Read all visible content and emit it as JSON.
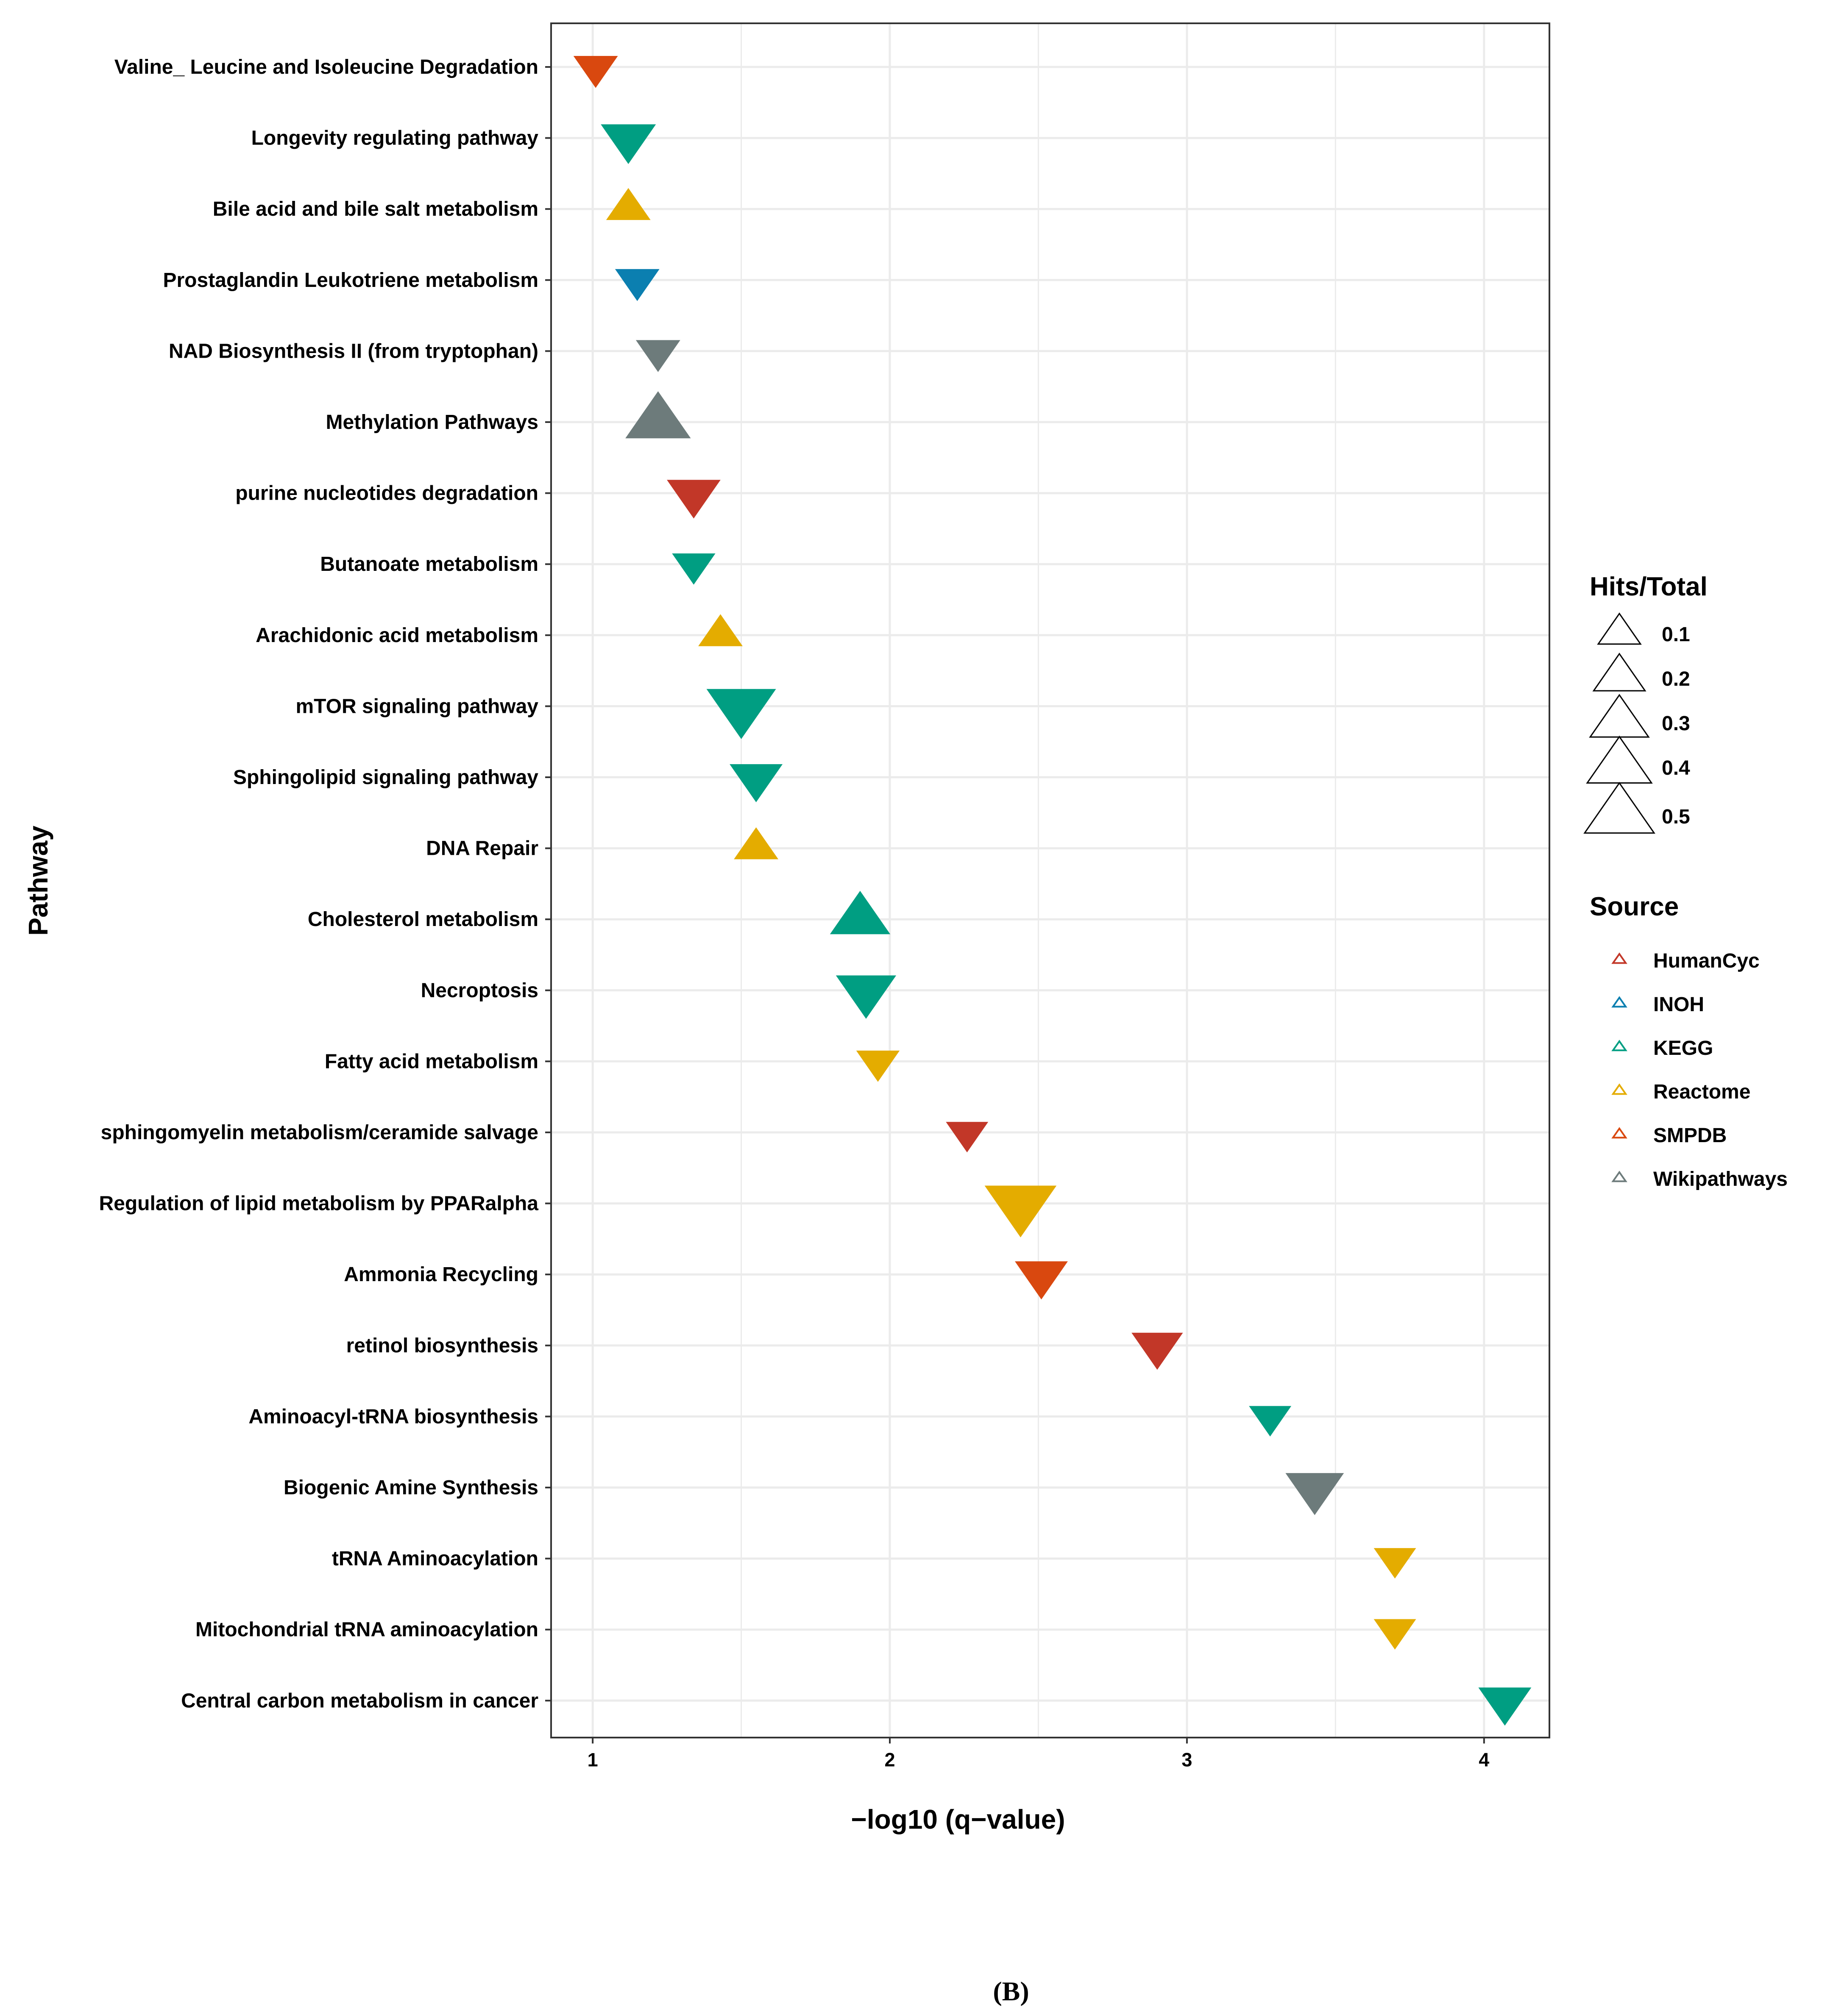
{
  "chart_data": {
    "type": "scatter",
    "xlabel": "−log10 (q−value)",
    "ylabel": "Pathway",
    "xlim": [
      0.86,
      4.22
    ],
    "xticks": [
      1,
      2,
      3,
      4
    ],
    "caption": "(B)",
    "categories": [
      "Valine_ Leucine and Isoleucine Degradation",
      "Longevity regulating pathway",
      "Bile acid and bile salt metabolism",
      "Prostaglandin Leukotriene metabolism",
      "NAD Biosynthesis II (from tryptophan)",
      "Methylation Pathways",
      "purine nucleotides degradation",
      "Butanoate metabolism",
      "Arachidonic acid metabolism",
      "mTOR signaling pathway",
      "Sphingolipid signaling pathway",
      "DNA Repair",
      "Cholesterol metabolism",
      "Necroptosis",
      "Fatty acid metabolism",
      "sphingomyelin metabolism/ceramide salvage",
      "Regulation of lipid metabolism by PPARalpha",
      "Ammonia Recycling",
      "retinol biosynthesis",
      "Aminoacyl-tRNA biosynthesis",
      "Biogenic Amine Synthesis",
      "tRNA Aminoacylation",
      "Mitochondrial tRNA aminoacylation",
      "Central carbon metabolism in cancer"
    ],
    "points": [
      {
        "pathway": "Valine_ Leucine and Isoleucine Degradation",
        "x": 1.01,
        "source": "SMPDB",
        "hits_total": 0.12,
        "direction": "down"
      },
      {
        "pathway": "Longevity regulating pathway",
        "x": 1.12,
        "source": "KEGG",
        "hits_total": 0.25,
        "direction": "down"
      },
      {
        "pathway": "Bile acid and bile salt metabolism",
        "x": 1.12,
        "source": "Reactome",
        "hits_total": 0.12,
        "direction": "up"
      },
      {
        "pathway": "Prostaglandin Leukotriene metabolism",
        "x": 1.15,
        "source": "INOH",
        "hits_total": 0.12,
        "direction": "down"
      },
      {
        "pathway": "NAD Biosynthesis II (from tryptophan)",
        "x": 1.22,
        "source": "Wikipathways",
        "hits_total": 0.12,
        "direction": "down"
      },
      {
        "pathway": "Methylation Pathways",
        "x": 1.22,
        "source": "Wikipathways",
        "hits_total": 0.42,
        "direction": "up"
      },
      {
        "pathway": "purine nucleotides degradation",
        "x": 1.34,
        "source": "HumanCyc",
        "hits_total": 0.23,
        "direction": "down"
      },
      {
        "pathway": "Butanoate metabolism",
        "x": 1.34,
        "source": "KEGG",
        "hits_total": 0.11,
        "direction": "down"
      },
      {
        "pathway": "Arachidonic acid metabolism",
        "x": 1.43,
        "source": "Reactome",
        "hits_total": 0.12,
        "direction": "up"
      },
      {
        "pathway": "mTOR signaling pathway",
        "x": 1.5,
        "source": "KEGG",
        "hits_total": 0.5,
        "direction": "down"
      },
      {
        "pathway": "Sphingolipid signaling pathway",
        "x": 1.55,
        "source": "KEGG",
        "hits_total": 0.22,
        "direction": "down"
      },
      {
        "pathway": "DNA Repair",
        "x": 1.55,
        "source": "Reactome",
        "hits_total": 0.12,
        "direction": "up"
      },
      {
        "pathway": "Cholesterol metabolism",
        "x": 1.9,
        "source": "KEGG",
        "hits_total": 0.33,
        "direction": "up"
      },
      {
        "pathway": "Necroptosis",
        "x": 1.92,
        "source": "KEGG",
        "hits_total": 0.33,
        "direction": "down"
      },
      {
        "pathway": "Fatty acid metabolism",
        "x": 1.96,
        "source": "Reactome",
        "hits_total": 0.11,
        "direction": "down"
      },
      {
        "pathway": "sphingomyelin metabolism/ceramide salvage",
        "x": 2.26,
        "source": "HumanCyc",
        "hits_total": 0.1,
        "direction": "down"
      },
      {
        "pathway": "Regulation of lipid metabolism by PPARalpha",
        "x": 2.44,
        "source": "Reactome",
        "hits_total": 0.55,
        "direction": "down"
      },
      {
        "pathway": "Ammonia Recycling",
        "x": 2.51,
        "source": "SMPDB",
        "hits_total": 0.22,
        "direction": "down"
      },
      {
        "pathway": "retinol biosynthesis",
        "x": 2.9,
        "source": "HumanCyc",
        "hits_total": 0.2,
        "direction": "down"
      },
      {
        "pathway": "Aminoacyl-tRNA biosynthesis",
        "x": 3.28,
        "source": "KEGG",
        "hits_total": 0.1,
        "direction": "down"
      },
      {
        "pathway": "Biogenic Amine Synthesis",
        "x": 3.43,
        "source": "Wikipathways",
        "hits_total": 0.3,
        "direction": "down"
      },
      {
        "pathway": "tRNA Aminoacylation",
        "x": 3.7,
        "source": "Reactome",
        "hits_total": 0.1,
        "direction": "down"
      },
      {
        "pathway": "Mitochondrial tRNA aminoacylation",
        "x": 3.7,
        "source": "Reactome",
        "hits_total": 0.1,
        "direction": "down"
      },
      {
        "pathway": "Central carbon metabolism in cancer",
        "x": 4.07,
        "source": "KEGG",
        "hits_total": 0.22,
        "direction": "down"
      }
    ],
    "legend_size": {
      "title": "Hits/Total",
      "entries": [
        {
          "label": "0.1",
          "value": 0.1
        },
        {
          "label": "0.2",
          "value": 0.2
        },
        {
          "label": "0.3",
          "value": 0.3
        },
        {
          "label": "0.4",
          "value": 0.4
        },
        {
          "label": "0.5",
          "value": 0.5
        }
      ]
    },
    "legend_color": {
      "title": "Source",
      "entries": [
        {
          "label": "HumanCyc",
          "color": "#c23728"
        },
        {
          "label": "INOH",
          "color": "#0b7fb0"
        },
        {
          "label": "KEGG",
          "color": "#009e82"
        },
        {
          "label": "Reactome",
          "color": "#e4ac00"
        },
        {
          "label": "SMPDB",
          "color": "#d9480f"
        },
        {
          "label": "Wikipathways",
          "color": "#6d7b7b"
        }
      ]
    }
  }
}
